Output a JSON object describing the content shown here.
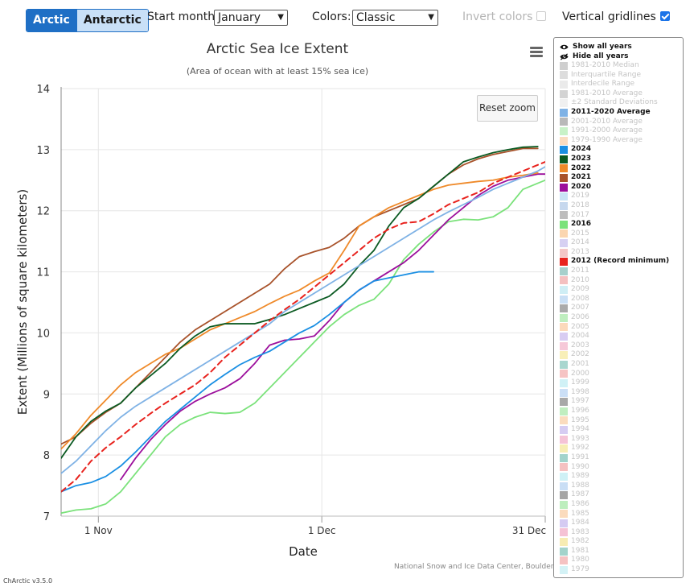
{
  "controls": {
    "hemisphere_buttons": [
      "Arctic",
      "Antarctic"
    ],
    "start_month_label": "Start month:",
    "start_month_value": "January",
    "colors_label": "Colors:",
    "colors_value": "Classic",
    "invert_colors_label": "Invert colors",
    "vertical_gridlines_label": "Vertical gridlines"
  },
  "reset_zoom_label": "Reset zoom",
  "credit": "National Snow and Ice Data Center, Boulder, CO",
  "version": "ChArctic v3.5.0",
  "legend": {
    "show_all": "Show all years",
    "hide_all": "Hide all years",
    "items": [
      {
        "label": "1981-2010 Median",
        "color": "#cfcfcf",
        "on": false
      },
      {
        "label": "Interquartile Range",
        "color": "#dddddd",
        "on": false
      },
      {
        "label": "Interdecile Range",
        "color": "#eaeaea",
        "on": false
      },
      {
        "label": "1981-2010 Average",
        "color": "#d3d3d3",
        "on": false
      },
      {
        "label": "±2 Standard Deviations",
        "color": "#f0f0f0",
        "on": false
      },
      {
        "label": "2011-2020 Average",
        "color": "#7fb2e5",
        "on": true
      },
      {
        "label": "2001-2010 Average",
        "color": "#b9b9b9",
        "on": false
      },
      {
        "label": "1991-2000 Average",
        "color": "#c8f2c8",
        "on": false
      },
      {
        "label": "1979-1990 Average",
        "color": "#fadcc0",
        "on": false
      },
      {
        "label": "2024",
        "color": "#1a8fe3",
        "on": true
      },
      {
        "label": "2023",
        "color": "#0b5a22",
        "on": true
      },
      {
        "label": "2022",
        "color": "#ef8a2a",
        "on": true
      },
      {
        "label": "2021",
        "color": "#a8522a",
        "on": true
      },
      {
        "label": "2020",
        "color": "#9c0f9c",
        "on": true
      },
      {
        "label": "2019",
        "color": "#c9e4f5",
        "on": false
      },
      {
        "label": "2018",
        "color": "#c6d8ee",
        "on": false
      },
      {
        "label": "2017",
        "color": "#bdbdbd",
        "on": false
      },
      {
        "label": "2016",
        "color": "#7be27b",
        "on": true
      },
      {
        "label": "2015",
        "color": "#fbd6b0",
        "on": false
      },
      {
        "label": "2014",
        "color": "#d6d0f2",
        "on": false
      },
      {
        "label": "2013",
        "color": "#f4c7c7",
        "on": false
      },
      {
        "label": "2012 (Record minimum)",
        "color": "#e8231e",
        "on": true
      },
      {
        "label": "2011",
        "color": "#a6d0cc",
        "on": false
      },
      {
        "label": "2010",
        "color": "#f4c0c0",
        "on": false
      },
      {
        "label": "2009",
        "color": "#cfeef5",
        "on": false
      },
      {
        "label": "2008",
        "color": "#c9dff5",
        "on": false
      },
      {
        "label": "2007",
        "color": "#aaaaaa",
        "on": false
      },
      {
        "label": "2006",
        "color": "#bfeebf",
        "on": false
      },
      {
        "label": "2005",
        "color": "#fbd9bb",
        "on": false
      },
      {
        "label": "2004",
        "color": "#d8ccf2",
        "on": false
      },
      {
        "label": "2003",
        "color": "#f6c8d8",
        "on": false
      },
      {
        "label": "2002",
        "color": "#f8efb8",
        "on": false
      },
      {
        "label": "2001",
        "color": "#a9d6cf",
        "on": false
      },
      {
        "label": "2000",
        "color": "#f6c4c4",
        "on": false
      },
      {
        "label": "1999",
        "color": "#d0f1f6",
        "on": false
      },
      {
        "label": "1998",
        "color": "#cbdff6",
        "on": false
      },
      {
        "label": "1997",
        "color": "#a8a8a8",
        "on": false
      },
      {
        "label": "1996",
        "color": "#c0eec0",
        "on": false
      },
      {
        "label": "1995",
        "color": "#fbdcbe",
        "on": false
      },
      {
        "label": "1994",
        "color": "#d6ccf2",
        "on": false
      },
      {
        "label": "1993",
        "color": "#f5c3d6",
        "on": false
      },
      {
        "label": "1992",
        "color": "#f7edb4",
        "on": false
      },
      {
        "label": "1991",
        "color": "#a2d3cb",
        "on": false
      },
      {
        "label": "1990",
        "color": "#f5c1c1",
        "on": false
      },
      {
        "label": "1989",
        "color": "#cff1f6",
        "on": false
      },
      {
        "label": "1988",
        "color": "#c9def5",
        "on": false
      },
      {
        "label": "1987",
        "color": "#a5a5a5",
        "on": false
      },
      {
        "label": "1986",
        "color": "#bdeebd",
        "on": false
      },
      {
        "label": "1985",
        "color": "#fbdbbd",
        "on": false
      },
      {
        "label": "1984",
        "color": "#d5cbf2",
        "on": false
      },
      {
        "label": "1983",
        "color": "#f5c2d5",
        "on": false
      },
      {
        "label": "1982",
        "color": "#f7ecb3",
        "on": false
      },
      {
        "label": "1981",
        "color": "#a3d3cb",
        "on": false
      },
      {
        "label": "1980",
        "color": "#f5c2c2",
        "on": false
      },
      {
        "label": "1979",
        "color": "#d4f2f6",
        "on": false
      }
    ]
  },
  "chart_data": {
    "type": "line",
    "title": "Arctic Sea Ice Extent",
    "subtitle": "(Area of ocean with at least 15% sea ice)",
    "xlabel": "Date",
    "ylabel": "Extent (Millions of square kilometers)",
    "xlim": [
      "Oct 27",
      "Dec 31"
    ],
    "ylim": [
      7,
      14
    ],
    "yticks": [
      "7",
      "8",
      "9",
      "10",
      "11",
      "12",
      "13",
      "14"
    ],
    "xticks": [
      {
        "label": "1 Nov",
        "date": "Nov 1"
      },
      {
        "label": "1 Dec",
        "date": "Dec 1"
      },
      {
        "label": "31 Dec",
        "date": "Dec 31"
      }
    ],
    "vertical_gridlines": true,
    "series": [
      {
        "name": "2016",
        "color": "#7be27b",
        "dash": false,
        "x": [
          "Oct 27",
          "Oct 29",
          "Oct 31",
          "Nov 2",
          "Nov 4",
          "Nov 6",
          "Nov 8",
          "Nov 10",
          "Nov 12",
          "Nov 14",
          "Nov 16",
          "Nov 18",
          "Nov 20",
          "Nov 22",
          "Nov 24",
          "Nov 26",
          "Nov 28",
          "Nov 30",
          "Dec 2",
          "Dec 4",
          "Dec 6",
          "Dec 8",
          "Dec 10",
          "Dec 12",
          "Dec 14",
          "Dec 16",
          "Dec 18",
          "Dec 20",
          "Dec 22",
          "Dec 24",
          "Dec 26",
          "Dec 28",
          "Dec 30",
          "Dec 31"
        ],
        "y": [
          7.05,
          7.1,
          7.12,
          7.2,
          7.4,
          7.7,
          8.0,
          8.3,
          8.5,
          8.62,
          8.7,
          8.68,
          8.7,
          8.85,
          9.1,
          9.35,
          9.6,
          9.85,
          10.1,
          10.3,
          10.45,
          10.55,
          10.8,
          11.2,
          11.45,
          11.65,
          11.82,
          11.86,
          11.85,
          11.9,
          12.05,
          12.35,
          12.45,
          12.5
        ]
      },
      {
        "name": "2020",
        "color": "#9c0f9c",
        "dash": false,
        "x": [
          "Nov 4",
          "Nov 6",
          "Nov 8",
          "Nov 10",
          "Nov 12",
          "Nov 14",
          "Nov 16",
          "Nov 18",
          "Nov 20",
          "Nov 22",
          "Nov 24",
          "Nov 26",
          "Nov 28",
          "Nov 30",
          "Dec 2",
          "Dec 4",
          "Dec 6",
          "Dec 8",
          "Dec 10",
          "Dec 12",
          "Dec 14",
          "Dec 16",
          "Dec 18",
          "Dec 20",
          "Dec 22",
          "Dec 24",
          "Dec 26",
          "Dec 28",
          "Dec 30",
          "Dec 31"
        ],
        "y": [
          7.6,
          7.95,
          8.25,
          8.5,
          8.72,
          8.88,
          9.0,
          9.1,
          9.25,
          9.5,
          9.8,
          9.88,
          9.9,
          9.95,
          10.2,
          10.5,
          10.7,
          10.85,
          11.0,
          11.15,
          11.35,
          11.6,
          11.85,
          12.05,
          12.25,
          12.4,
          12.5,
          12.55,
          12.6,
          12.6
        ]
      },
      {
        "name": "2021",
        "color": "#a8522a",
        "dash": false,
        "x": [
          "Oct 27",
          "Oct 29",
          "Oct 31",
          "Nov 2",
          "Nov 4",
          "Nov 6",
          "Nov 8",
          "Nov 10",
          "Nov 12",
          "Nov 14",
          "Nov 16",
          "Nov 18",
          "Nov 20",
          "Nov 22",
          "Nov 24",
          "Nov 26",
          "Nov 28",
          "Nov 30",
          "Dec 2",
          "Dec 4",
          "Dec 6",
          "Dec 8",
          "Dec 10",
          "Dec 12",
          "Dec 14",
          "Dec 16",
          "Dec 18",
          "Dec 20",
          "Dec 22",
          "Dec 24",
          "Dec 26",
          "Dec 28",
          "Dec 30"
        ],
        "y": [
          8.18,
          8.3,
          8.52,
          8.7,
          8.85,
          9.1,
          9.35,
          9.6,
          9.85,
          10.05,
          10.2,
          10.35,
          10.5,
          10.65,
          10.8,
          11.05,
          11.25,
          11.33,
          11.4,
          11.55,
          11.75,
          11.9,
          12.0,
          12.1,
          12.2,
          12.4,
          12.6,
          12.75,
          12.85,
          12.92,
          12.97,
          13.02,
          13.02
        ]
      },
      {
        "name": "2022",
        "color": "#ef8a2a",
        "dash": false,
        "x": [
          "Oct 27",
          "Oct 29",
          "Oct 31",
          "Nov 2",
          "Nov 4",
          "Nov 6",
          "Nov 8",
          "Nov 10",
          "Nov 12",
          "Nov 14",
          "Nov 16",
          "Nov 18",
          "Nov 20",
          "Nov 22",
          "Nov 24",
          "Nov 26",
          "Nov 28",
          "Nov 30",
          "Dec 2",
          "Dec 4",
          "Dec 6",
          "Dec 8",
          "Dec 10",
          "Dec 12",
          "Dec 14",
          "Dec 16",
          "Dec 18",
          "Dec 20",
          "Dec 22",
          "Dec 24",
          "Dec 26",
          "Dec 28",
          "Dec 30"
        ],
        "y": [
          8.1,
          8.35,
          8.65,
          8.9,
          9.15,
          9.35,
          9.5,
          9.65,
          9.75,
          9.9,
          10.05,
          10.15,
          10.25,
          10.35,
          10.48,
          10.6,
          10.7,
          10.85,
          10.98,
          11.35,
          11.75,
          11.9,
          12.05,
          12.15,
          12.25,
          12.35,
          12.42,
          12.45,
          12.48,
          12.5,
          12.55,
          12.58,
          12.62
        ]
      },
      {
        "name": "2023",
        "color": "#0b5a22",
        "dash": false,
        "x": [
          "Oct 27",
          "Oct 29",
          "Oct 31",
          "Nov 2",
          "Nov 4",
          "Nov 6",
          "Nov 8",
          "Nov 10",
          "Nov 12",
          "Nov 14",
          "Nov 16",
          "Nov 18",
          "Nov 20",
          "Nov 22",
          "Nov 24",
          "Nov 26",
          "Nov 28",
          "Nov 30",
          "Dec 2",
          "Dec 4",
          "Dec 6",
          "Dec 8",
          "Dec 10",
          "Dec 12",
          "Dec 14",
          "Dec 16",
          "Dec 18",
          "Dec 20",
          "Dec 22",
          "Dec 24",
          "Dec 26",
          "Dec 28",
          "Dec 30"
        ],
        "y": [
          7.95,
          8.3,
          8.55,
          8.72,
          8.85,
          9.1,
          9.3,
          9.5,
          9.75,
          9.95,
          10.1,
          10.15,
          10.15,
          10.15,
          10.22,
          10.3,
          10.4,
          10.5,
          10.6,
          10.8,
          11.1,
          11.35,
          11.75,
          12.05,
          12.2,
          12.4,
          12.6,
          12.8,
          12.88,
          12.95,
          13.0,
          13.04,
          13.05
        ]
      },
      {
        "name": "2024",
        "color": "#1a8fe3",
        "dash": false,
        "x": [
          "Oct 27",
          "Oct 29",
          "Oct 31",
          "Nov 2",
          "Nov 4",
          "Nov 6",
          "Nov 8",
          "Nov 10",
          "Nov 12",
          "Nov 14",
          "Nov 16",
          "Nov 18",
          "Nov 20",
          "Nov 22",
          "Nov 24",
          "Nov 26",
          "Nov 28",
          "Nov 30",
          "Dec 2",
          "Dec 4",
          "Dec 6",
          "Dec 8",
          "Dec 10",
          "Dec 12",
          "Dec 14",
          "Dec 16"
        ],
        "y": [
          7.4,
          7.5,
          7.55,
          7.65,
          7.82,
          8.05,
          8.3,
          8.55,
          8.75,
          8.95,
          9.15,
          9.32,
          9.48,
          9.6,
          9.7,
          9.85,
          10.0,
          10.12,
          10.3,
          10.5,
          10.7,
          10.85,
          10.9,
          10.95,
          11.0,
          11.0
        ]
      },
      {
        "name": "2011-2020 Average",
        "color": "#7fb2e5",
        "dash": false,
        "x": [
          "Oct 27",
          "Oct 29",
          "Oct 31",
          "Nov 2",
          "Nov 4",
          "Nov 6",
          "Nov 8",
          "Nov 10",
          "Nov 12",
          "Nov 14",
          "Nov 16",
          "Nov 18",
          "Nov 20",
          "Nov 22",
          "Nov 24",
          "Nov 26",
          "Nov 28",
          "Nov 30",
          "Dec 2",
          "Dec 4",
          "Dec 6",
          "Dec 8",
          "Dec 10",
          "Dec 12",
          "Dec 14",
          "Dec 16",
          "Dec 18",
          "Dec 20",
          "Dec 22",
          "Dec 24",
          "Dec 26",
          "Dec 28",
          "Dec 30",
          "Dec 31"
        ],
        "y": [
          7.7,
          7.9,
          8.15,
          8.4,
          8.62,
          8.8,
          8.95,
          9.1,
          9.25,
          9.4,
          9.55,
          9.7,
          9.85,
          10.0,
          10.15,
          10.35,
          10.5,
          10.65,
          10.8,
          10.95,
          11.1,
          11.25,
          11.4,
          11.55,
          11.7,
          11.85,
          11.98,
          12.1,
          12.22,
          12.35,
          12.45,
          12.55,
          12.65,
          12.72
        ]
      },
      {
        "name": "2012 (Record minimum)",
        "color": "#e8231e",
        "dash": true,
        "x": [
          "Oct 27",
          "Oct 29",
          "Oct 31",
          "Nov 2",
          "Nov 4",
          "Nov 6",
          "Nov 8",
          "Nov 10",
          "Nov 12",
          "Nov 14",
          "Nov 16",
          "Nov 18",
          "Nov 20",
          "Nov 22",
          "Nov 24",
          "Nov 26",
          "Nov 28",
          "Nov 30",
          "Dec 2",
          "Dec 4",
          "Dec 6",
          "Dec 8",
          "Dec 10",
          "Dec 12",
          "Dec 14",
          "Dec 16",
          "Dec 18",
          "Dec 20",
          "Dec 22",
          "Dec 24",
          "Dec 26",
          "Dec 28",
          "Dec 30",
          "Dec 31"
        ],
        "y": [
          7.4,
          7.6,
          7.9,
          8.12,
          8.3,
          8.5,
          8.68,
          8.85,
          9.0,
          9.15,
          9.35,
          9.6,
          9.8,
          10.0,
          10.2,
          10.38,
          10.55,
          10.75,
          10.95,
          11.15,
          11.35,
          11.55,
          11.7,
          11.8,
          11.82,
          11.95,
          12.1,
          12.2,
          12.3,
          12.45,
          12.55,
          12.65,
          12.75,
          12.8
        ]
      }
    ]
  }
}
